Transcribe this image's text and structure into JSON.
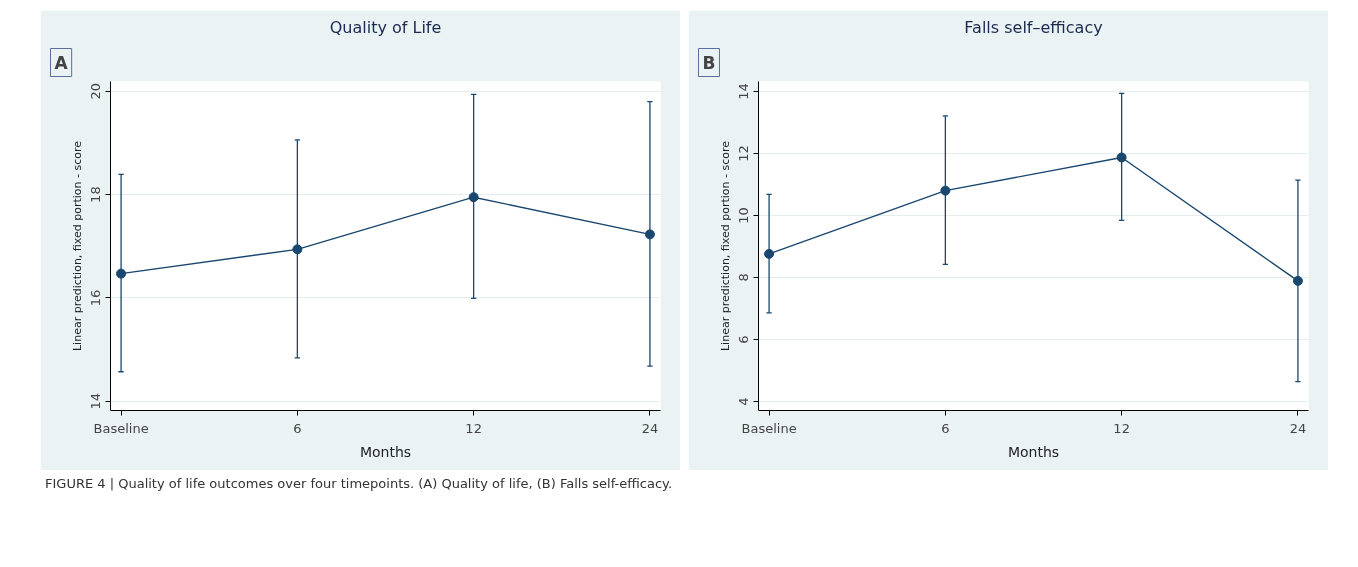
{
  "chart_data": [
    {
      "type": "line",
      "title": "Quality of Life",
      "xlabel": "Months",
      "ylabel": "Linear prediction, fixed portion - score",
      "categories": [
        "Baseline",
        "6",
        "12",
        "24"
      ],
      "series": [
        {
          "color": "#1a476f",
          "values": [
            16.47,
            16.94,
            17.95,
            17.23
          ],
          "errors": [
            [
              14.57,
              18.39
            ],
            [
              14.84,
              19.06
            ],
            [
              15.99,
              19.94
            ],
            [
              14.68,
              19.8
            ]
          ]
        }
      ],
      "ylim": [
        13.82,
        20.19
      ],
      "yticks": [
        14,
        16,
        18,
        20
      ],
      "grid": "y",
      "marker": "circle",
      "line_style": "solid",
      "annotations": [
        "A",
        "FIGURE 4 | Quality of life outcomes over four timepoints. (A) Quality of life, (B) Falls self-efficacy."
      ]
    },
    {
      "type": "line",
      "title": "Falls self–efficacy",
      "xlabel": "Months",
      "ylabel": "Linear prediction, fixed portion - score",
      "categories": [
        "Baseline",
        "6",
        "12",
        "24"
      ],
      "series": [
        {
          "color": "#1a476f",
          "values": [
            8.76,
            10.8,
            11.87,
            7.89
          ],
          "errors": [
            [
              6.86,
              10.68
            ],
            [
              8.42,
              13.21
            ],
            [
              9.84,
              13.94
            ],
            [
              4.64,
              11.14
            ]
          ]
        }
      ],
      "ylim": [
        3.71,
        14.32
      ],
      "yticks": [
        4,
        6,
        8,
        10,
        12,
        14
      ],
      "grid": "y",
      "marker": "circle",
      "line_style": "solid",
      "annotations": [
        "B"
      ]
    }
  ]
}
